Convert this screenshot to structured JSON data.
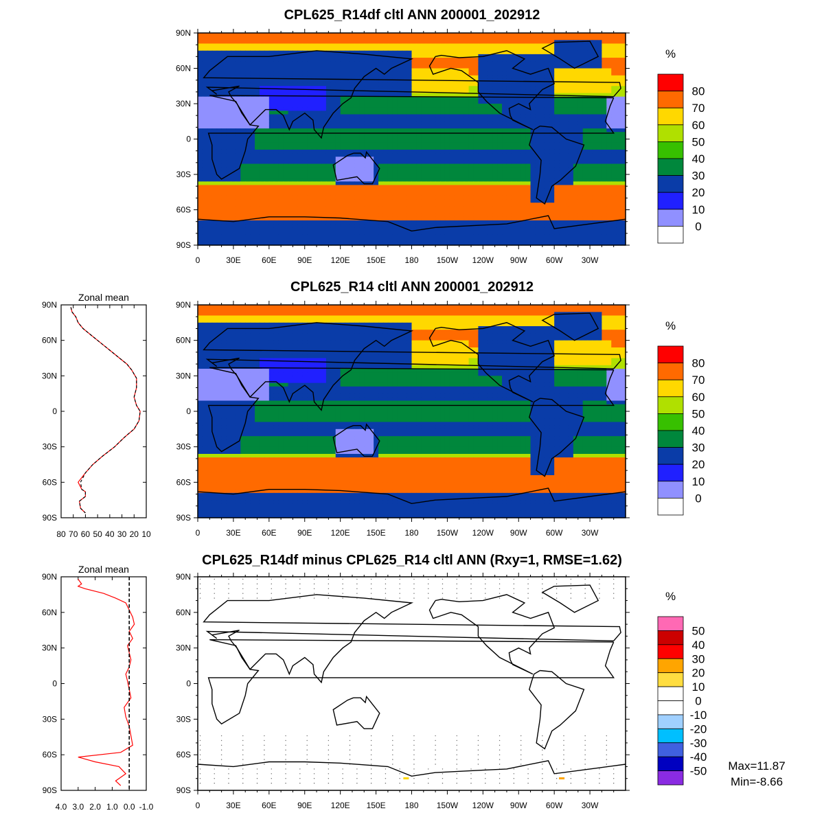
{
  "charts": [
    {
      "id": "top",
      "type": "heatmap",
      "title": "CPL625_R14df cltl ANN 200001_202912",
      "units": "%",
      "colorbar_labels": [
        "80",
        "70",
        "60",
        "50",
        "40",
        "30",
        "20",
        "10",
        "0"
      ],
      "colorbar_colors": [
        "#ff0000",
        "#ff6a00",
        "#ffd800",
        "#b0e000",
        "#37c000",
        "#00873c",
        "#0a3ca8",
        "#2020ff",
        "#9090ff",
        "#ffffff"
      ]
    },
    {
      "id": "middle",
      "type": "heatmap",
      "title": "CPL625_R14 cltl ANN 200001_202912",
      "units": "%",
      "colorbar_labels": [
        "80",
        "70",
        "60",
        "50",
        "40",
        "30",
        "20",
        "10",
        "0"
      ],
      "colorbar_colors": [
        "#ff0000",
        "#ff6a00",
        "#ffd800",
        "#b0e000",
        "#37c000",
        "#00873c",
        "#0a3ca8",
        "#2020ff",
        "#9090ff",
        "#ffffff"
      ]
    },
    {
      "id": "bottom",
      "type": "heatmap",
      "title": "CPL625_R14df minus CPL625_R14 cltl ANN (Rxy=1, RMSE=1.62)",
      "units": "%",
      "colorbar_labels": [
        "50",
        "40",
        "30",
        "20",
        "10",
        "0",
        "-10",
        "-20",
        "-30",
        "-40",
        "-50"
      ],
      "colorbar_colors": [
        "#ff69b4",
        "#cc0000",
        "#ff0000",
        "#ffa500",
        "#ffdd40",
        "#ffffff",
        "#ffffff",
        "#a0d0ff",
        "#00bfff",
        "#4060e0",
        "#0000c0",
        "#8a2be2"
      ],
      "max_label": "Max=11.87",
      "min_label": "Min=-8.66"
    }
  ],
  "map_axes": {
    "lat_ticks": [
      "90N",
      "60N",
      "30N",
      "0",
      "30S",
      "60S",
      "90S"
    ],
    "lon_ticks": [
      "0",
      "30E",
      "60E",
      "90E",
      "120E",
      "150E",
      "180",
      "150W",
      "120W",
      "90W",
      "60W",
      "30W"
    ]
  },
  "zonal_mean": [
    {
      "title": "Zonal mean",
      "type": "line",
      "x_ticks": [
        "80",
        "70",
        "60",
        "50",
        "40",
        "30",
        "20",
        "10"
      ],
      "xlim": [
        80,
        10
      ],
      "lat_ticks": [
        "90N",
        "60N",
        "30N",
        "0",
        "30S",
        "60S",
        "90S"
      ],
      "series": [
        {
          "color": "#ff0000",
          "x": [
            72,
            71,
            68,
            66,
            62,
            56,
            50,
            44,
            38,
            32,
            26,
            22,
            18,
            18,
            20,
            18,
            15,
            16,
            20,
            28,
            36,
            46,
            54,
            60,
            66,
            63,
            60,
            60,
            65,
            64,
            60
          ],
          "lat": [
            88,
            84,
            80,
            75,
            70,
            65,
            60,
            55,
            50,
            45,
            40,
            35,
            28,
            20,
            12,
            5,
            0,
            -8,
            -15,
            -22,
            -30,
            -38,
            -45,
            -52,
            -60,
            -66,
            -68,
            -72,
            -76,
            -82,
            -86
          ]
        },
        {
          "color": "#000000",
          "x": [
            72,
            71,
            68,
            66,
            62,
            56,
            50,
            44,
            38,
            32,
            26,
            22,
            18,
            18,
            20,
            18,
            15,
            16,
            20,
            28,
            36,
            46,
            54,
            60,
            64,
            63,
            60,
            60,
            65,
            64,
            60
          ],
          "lat": [
            88,
            84,
            80,
            75,
            70,
            65,
            60,
            55,
            50,
            45,
            40,
            35,
            28,
            20,
            12,
            5,
            0,
            -8,
            -15,
            -22,
            -30,
            -38,
            -45,
            -52,
            -60,
            -66,
            -68,
            -72,
            -76,
            -82,
            -86
          ]
        }
      ]
    },
    {
      "title": "Zonal mean",
      "type": "line",
      "x_ticks": [
        "4.0",
        "3.0",
        "2.0",
        "1.0",
        "0.0",
        "-1.0"
      ],
      "xlim": [
        4.0,
        -1.0
      ],
      "lat_ticks": [
        "90N",
        "60N",
        "30N",
        "0",
        "30S",
        "60S",
        "90S"
      ],
      "series": [
        {
          "color": "#ff0000",
          "x": [
            3.0,
            2.8,
            3.0,
            2.6,
            1.5,
            0.8,
            0.2,
            0.0,
            -0.2,
            -0.3,
            0.0,
            -0.2,
            0.1,
            0.0,
            -0.1,
            0.0,
            0.2,
            0.1,
            0.0,
            -0.1,
            0.3,
            0.2,
            0.0,
            -0.1,
            -0.2,
            0.5,
            3.0,
            2.0,
            0.6,
            0.2,
            0.8,
            0.5
          ],
          "lat": [
            88,
            84,
            82,
            80,
            76,
            72,
            68,
            62,
            56,
            50,
            44,
            38,
            32,
            26,
            20,
            14,
            8,
            2,
            -5,
            -12,
            -20,
            -28,
            -36,
            -44,
            -52,
            -58,
            -62,
            -66,
            -70,
            -76,
            -82,
            -86
          ]
        },
        {
          "color": "#000000",
          "x": [
            0.0,
            0.0
          ],
          "lat": [
            90,
            -90
          ]
        }
      ]
    }
  ]
}
